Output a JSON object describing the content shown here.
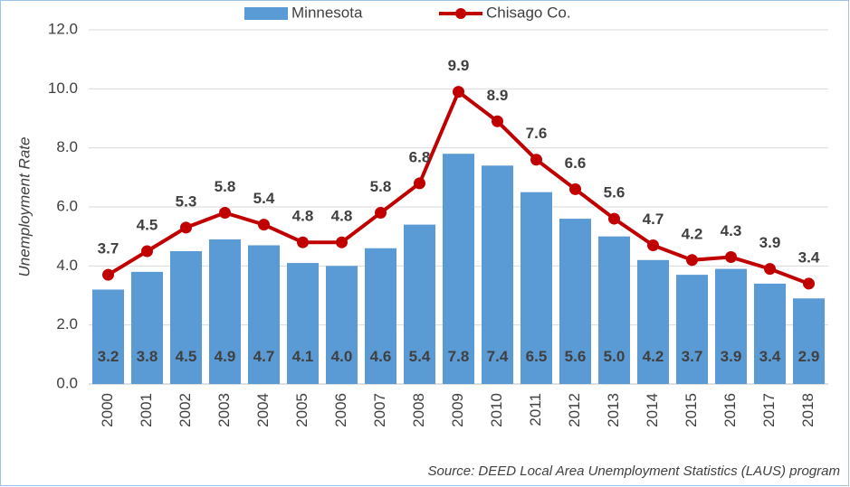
{
  "chart_data": {
    "type": "combo",
    "y_label": "Unemployment Rate",
    "source": "Source: DEED Local Area Unemployment Statistics (LAUS) program",
    "categories": [
      "2000",
      "2001",
      "2002",
      "2003",
      "2004",
      "2005",
      "2006",
      "2007",
      "2008",
      "2009",
      "2010",
      "2011",
      "2012",
      "2013",
      "2014",
      "2015",
      "2016",
      "2017",
      "2018"
    ],
    "series": [
      {
        "name": "Minnesota",
        "type": "bar",
        "color": "#5b9bd5",
        "values": [
          3.2,
          3.8,
          4.5,
          4.9,
          4.7,
          4.1,
          4.0,
          4.6,
          5.4,
          7.8,
          7.4,
          6.5,
          5.6,
          5.0,
          4.2,
          3.7,
          3.9,
          3.4,
          2.9
        ],
        "value_labels": [
          "3.2",
          "3.8",
          "4.5",
          "4.9",
          "4.7",
          "4.1",
          "4.0",
          "4.6",
          "5.4",
          "7.8",
          "7.4",
          "6.5",
          "5.6",
          "5.0",
          "4.2",
          "3.7",
          "3.9",
          "3.4",
          "2.9"
        ]
      },
      {
        "name": "Chisago Co.",
        "type": "line",
        "color": "#c00000",
        "values": [
          3.7,
          4.5,
          5.3,
          5.8,
          5.4,
          4.8,
          4.8,
          5.8,
          6.8,
          9.9,
          8.9,
          7.6,
          6.6,
          5.6,
          4.7,
          4.2,
          4.3,
          3.9,
          3.4
        ]
      }
    ],
    "ylim": [
      0,
      12
    ],
    "yticks": [
      {
        "value": 0,
        "label": "0.0"
      },
      {
        "value": 2,
        "label": "2.0"
      },
      {
        "value": 4,
        "label": "4.0"
      },
      {
        "value": 6,
        "label": "6.0"
      },
      {
        "value": 8,
        "label": "8.0"
      },
      {
        "value": 10,
        "label": "10.0"
      },
      {
        "value": 12,
        "label": "12.0"
      }
    ],
    "grid": true,
    "legend": "top"
  }
}
